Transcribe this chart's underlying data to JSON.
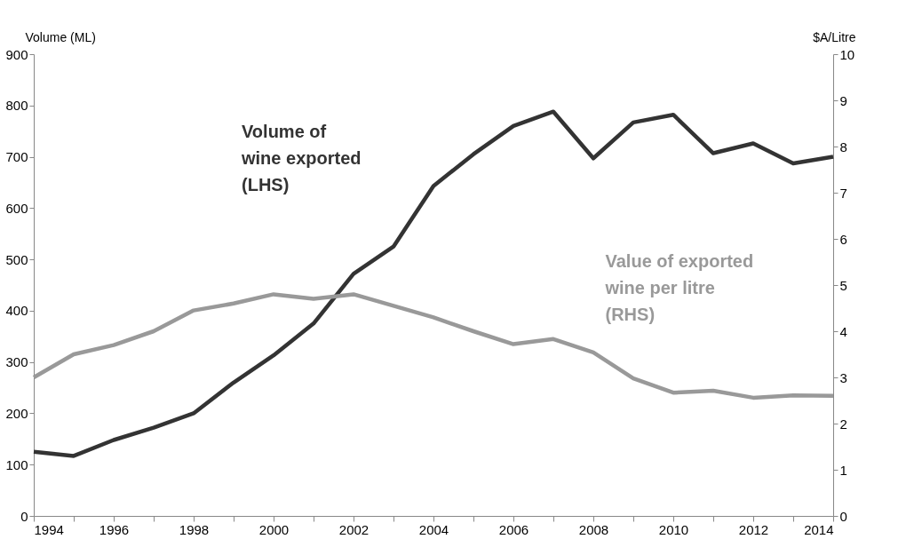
{
  "chart_data": {
    "type": "line",
    "ylabel": "Volume (ML)",
    "y2label": "$A/Litre",
    "x": [
      1994,
      1995,
      1996,
      1997,
      1998,
      1999,
      2000,
      2001,
      2002,
      2003,
      2004,
      2005,
      2006,
      2007,
      2008,
      2009,
      2010,
      2011,
      2012,
      2013,
      2014
    ],
    "xlim": [
      1994,
      2014
    ],
    "xticks": [
      1994,
      {
        "value": 1995,
        "label": null
      },
      1996,
      {
        "value": 1997,
        "label": null
      },
      1998,
      {
        "value": 1999,
        "label": null
      },
      2000,
      {
        "value": 2001,
        "label": null
      },
      2002,
      {
        "value": 2003,
        "label": null
      },
      2004,
      {
        "value": 2005,
        "label": null
      },
      2006,
      {
        "value": 2007,
        "label": null
      },
      2008,
      {
        "value": 2009,
        "label": null
      },
      2010,
      {
        "value": 2011,
        "label": null
      },
      2012,
      {
        "value": 2013,
        "label": null
      },
      2014
    ],
    "ylim": [
      0,
      900
    ],
    "yticks": [
      0,
      100,
      200,
      300,
      400,
      500,
      600,
      700,
      800,
      900
    ],
    "y2lim": [
      0,
      10
    ],
    "y2ticks": [
      0,
      1,
      2,
      3,
      4,
      5,
      6,
      7,
      8,
      9,
      10
    ],
    "series": [
      {
        "name": "Volume of\nwine exported\n(LHS)",
        "color": "#333333",
        "values": [
          125,
          117,
          148,
          172,
          200,
          260,
          313,
          375,
          472,
          525,
          643,
          705,
          760,
          788,
          697,
          767,
          782,
          707,
          726,
          687,
          700
        ]
      },
      {
        "name": "Value of exported\nwine per litre\n(RHS)",
        "color": "#999999",
        "axis": "y2",
        "values": [
          3.0,
          3.5,
          3.7,
          4.0,
          4.45,
          4.6,
          4.8,
          4.7,
          4.8,
          4.55,
          4.3,
          4.0,
          3.72,
          3.83,
          3.54,
          2.98,
          2.67,
          2.71,
          2.56,
          2.61,
          2.6
        ]
      }
    ],
    "grid": false
  }
}
